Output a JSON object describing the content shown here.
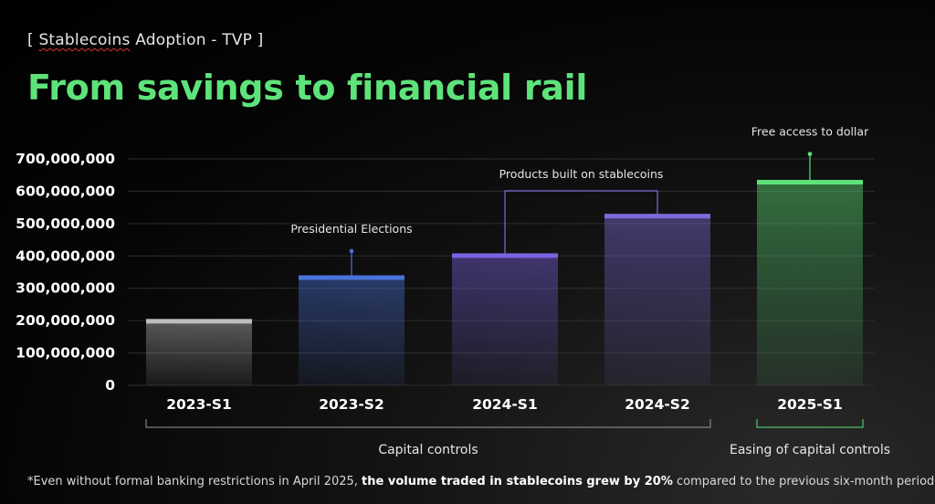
{
  "header": {
    "kicker_open": "[ ",
    "kicker_word": "Stablecoins",
    "kicker_rest": " Adoption - TVP ]",
    "title": "From savings to financial rail"
  },
  "footnote": {
    "part1": "*Even without formal banking restrictions in April 2025, ",
    "bold": "the volume traded in stablecoins grew by 20%",
    "part2": " compared to the previous six-month period"
  },
  "colors": {
    "grey": "#bdbdbd",
    "blue": "#4a72d9",
    "purple_light": "#7a62e0",
    "purple": "#7e6ad8",
    "green": "#5ee37a"
  },
  "chart_data": {
    "type": "bar",
    "categories": [
      "2023-S1",
      "2023-S2",
      "2024-S1",
      "2024-S2",
      "2025-S1"
    ],
    "values": [
      205000000,
      340000000,
      408000000,
      530000000,
      635000000
    ],
    "ylim": [
      0,
      700000000
    ],
    "yticks": [
      0,
      100000000,
      200000000,
      300000000,
      400000000,
      500000000,
      600000000,
      700000000
    ],
    "ytick_labels": [
      "0",
      "100,000,000",
      "200,000,000",
      "300,000,000",
      "400,000,000",
      "500,000,000",
      "600,000,000",
      "700,000,000"
    ],
    "bar_colors": [
      "#bdbdbd",
      "#4a72d9",
      "#7a62e0",
      "#7e6ad8",
      "#5ee37a"
    ],
    "grid": true,
    "annotations": [
      {
        "text": "Presidential Elections",
        "category": "2023-S2",
        "tip_value": 415000000
      },
      {
        "text": "Products built on stablecoins",
        "from": "2024-S1",
        "to": "2024-S2"
      },
      {
        "text": "Free access to dollar",
        "category": "2025-S1",
        "tip_value": 715000000
      }
    ],
    "groups": [
      {
        "text": "Capital controls",
        "from": "2023-S1",
        "to": "2024-S2"
      },
      {
        "text": "Easing of capital controls",
        "from": "2025-S1",
        "to": "2025-S1"
      }
    ]
  }
}
